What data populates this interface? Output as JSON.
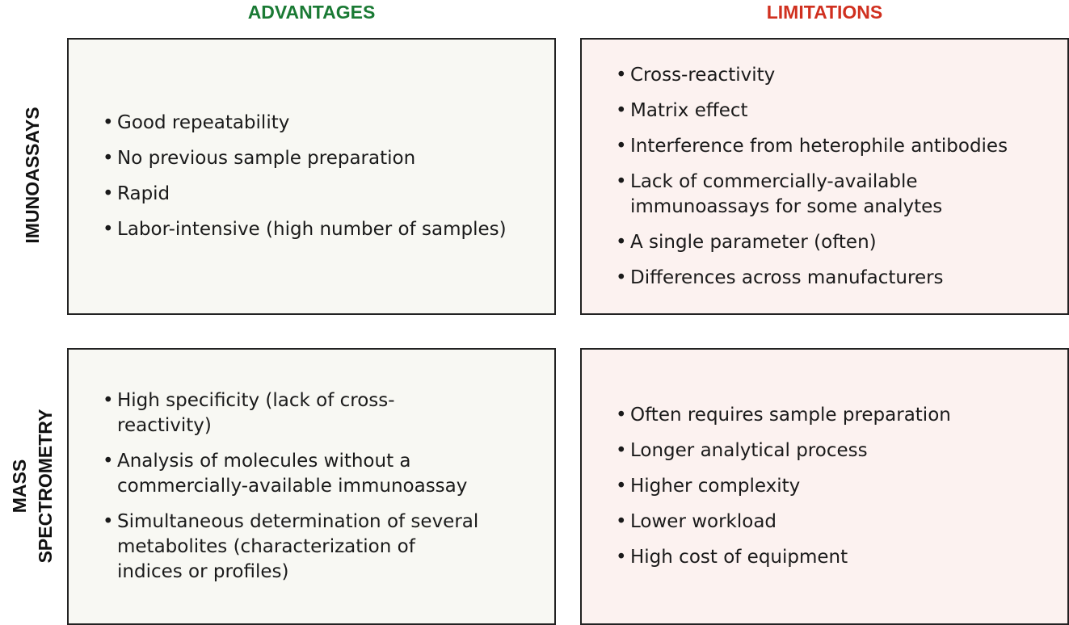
{
  "columns": {
    "advantages": {
      "label": "ADVANTAGES",
      "color": "#1a7a34"
    },
    "limitations": {
      "label": "LIMITATIONS",
      "color": "#d0301f"
    }
  },
  "rows": {
    "immunoassays": {
      "label": "IMUNOASSAYS",
      "advantages": [
        "Good repeatability",
        "No previous sample preparation",
        "Rapid",
        "Labor-intensive (high number of samples)"
      ],
      "limitations": [
        "Cross-reactivity",
        "Matrix effect",
        "Interference from heterophile antibodies",
        "Lack of commercially-available immunoassays for some analytes",
        "A single parameter (often)",
        "Differences across manufacturers"
      ]
    },
    "mass_spectrometry": {
      "label_line1": "MASS",
      "label_line2": "SPECTROMETRY",
      "advantages": [
        "High specificity (lack of cross-reactivity)",
        "Analysis of molecules without a commercially-available immunoassay",
        "Simultaneous determination of several metabolites (characterization of indices or profiles)"
      ],
      "limitations": [
        "Often requires sample preparation",
        "Longer analytical process",
        "Higher complexity",
        "Lower workload",
        "High cost of equipment"
      ]
    }
  },
  "bullet": "•"
}
